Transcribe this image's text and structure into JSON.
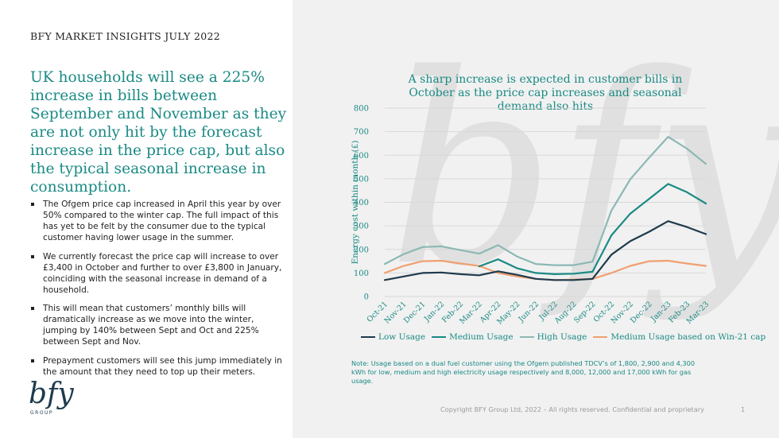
{
  "header": {
    "title": "BFY MARKET INSIGHTS JULY 2022"
  },
  "headline": "UK households will see a 225% increase in bills between September and November as they are not only hit by the forecast increase in the price cap, but also the typical seasonal increase in consumption.",
  "bullets": [
    "The Ofgem price cap increased in April this year by over 50% compared to the winter cap. The full impact of this has yet to be felt by the consumer due to the typical customer having lower usage in the summer.",
    "We currently forecast the price cap will increase to over £3,400 in October and further to over £3,800 in January, coinciding with the seasonal increase in demand of a household.",
    "This will mean that customers’ monthly bills will dramatically increase as we move into the winter, jumping by 140% between Sept and Oct and 225% between Sept and Nov.",
    "Prepayment customers will see this jump immediately in the amount that they need to top up their meters."
  ],
  "logo": {
    "text": "bfy",
    "subtext": "GROUP",
    "watermark": "bfy"
  },
  "colors": {
    "teal": "#1a8a84",
    "dark": "#1f3b4d",
    "light_teal": "#7fb4b0",
    "orange": "#f0a070"
  },
  "chart_data": {
    "type": "line",
    "title": "A sharp increase is expected in customer bills in October as the price cap increases and seasonal demand also hits",
    "ylabel": "Energy cost within month (£)",
    "xlabel": "",
    "ylim": [
      0,
      800
    ],
    "yticks": [
      0,
      100,
      200,
      300,
      400,
      500,
      600,
      700,
      800
    ],
    "categories": [
      "Oct-21",
      "Nov-21",
      "Dec-21",
      "Jan-22",
      "Feb-22",
      "Mar-22",
      "Apr-22",
      "May-22",
      "Jun-22",
      "Jul-22",
      "Aug-22",
      "Sep-22",
      "Oct-22",
      "Nov-22",
      "Dec-22",
      "Jan-23",
      "Feb-23",
      "Mar-23"
    ],
    "grid": true,
    "legend_position": "bottom",
    "series": [
      {
        "name": "Low Usage",
        "color": "#1f3b4d",
        "values": [
          70,
          85,
          100,
          102,
          95,
          90,
          107,
          92,
          75,
          70,
          70,
          75,
          178,
          235,
          275,
          320,
          295,
          265
        ]
      },
      {
        "name": "Medium Usage",
        "color": "#1a8a84",
        "values": [
          null,
          null,
          null,
          null,
          null,
          128,
          158,
          120,
          100,
          95,
          97,
          105,
          260,
          352,
          415,
          478,
          443,
          395
        ]
      },
      {
        "name": "High Usage",
        "color": "#8cb8b4",
        "values": [
          138,
          180,
          210,
          213,
          197,
          182,
          218,
          170,
          138,
          133,
          133,
          148,
          365,
          498,
          590,
          678,
          628,
          563
        ]
      },
      {
        "name": "Medium Usage based on Win-21 cap",
        "color": "#f0a070",
        "values": [
          100,
          130,
          150,
          152,
          140,
          130,
          100,
          85,
          75,
          70,
          72,
          75,
          100,
          130,
          150,
          152,
          140,
          130
        ]
      }
    ]
  },
  "note": "Note: Usage based on a dual fuel customer using the Ofgem published TDCV’s of 1,800, 2,900 and 4,300 kWh for low, medium and high electricity usage respectively and 8,000, 12,000 and 17,000 kWh for gas usage.",
  "footer": {
    "copyright": "Copyright BFY Group Ltd, 2022 – All rights reserved. Confidential and proprietary",
    "page": "1"
  }
}
